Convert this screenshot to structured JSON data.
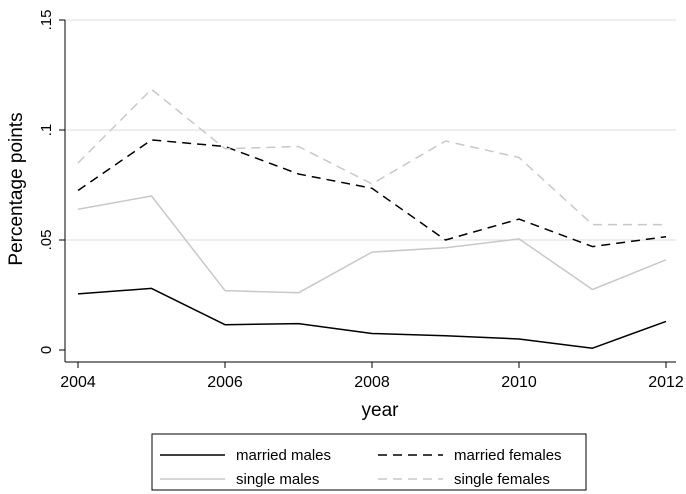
{
  "chart_data": {
    "type": "line",
    "xlabel": "year",
    "ylabel": "Percentage points",
    "xlim": [
      2004,
      2012
    ],
    "ylim": [
      0,
      0.15
    ],
    "x_ticks": [
      2004,
      2006,
      2008,
      2010,
      2012
    ],
    "x_tick_labels": [
      "2004",
      "2006",
      "2008",
      "2010",
      "2012"
    ],
    "y_ticks": [
      0,
      0.05,
      0.1,
      0.15
    ],
    "y_tick_labels": [
      "0",
      ".05",
      ".1",
      ".15"
    ],
    "grid": "horizontal",
    "legend_position": "bottom",
    "x": [
      2004,
      2005,
      2006,
      2007,
      2008,
      2009,
      2010,
      2011,
      2012
    ],
    "series": [
      {
        "name": "married males",
        "color": "#000000",
        "dash": "solid",
        "values": [
          0.0255,
          0.028,
          0.0115,
          0.012,
          0.0075,
          0.0065,
          0.005,
          0.0008,
          0.013
        ]
      },
      {
        "name": "married females",
        "color": "#000000",
        "dash": "dashed",
        "values": [
          0.0725,
          0.0955,
          0.0925,
          0.08,
          0.0735,
          0.05,
          0.0595,
          0.047,
          0.0515
        ]
      },
      {
        "name": "single males",
        "color": "#c8c8c8",
        "dash": "solid",
        "values": [
          0.064,
          0.07,
          0.027,
          0.026,
          0.0445,
          0.0465,
          0.0505,
          0.0275,
          0.041
        ]
      },
      {
        "name": "single females",
        "color": "#c8c8c8",
        "dash": "dashed",
        "values": [
          0.085,
          0.1185,
          0.0915,
          0.0925,
          0.0755,
          0.095,
          0.0875,
          0.057,
          0.057
        ]
      }
    ]
  }
}
